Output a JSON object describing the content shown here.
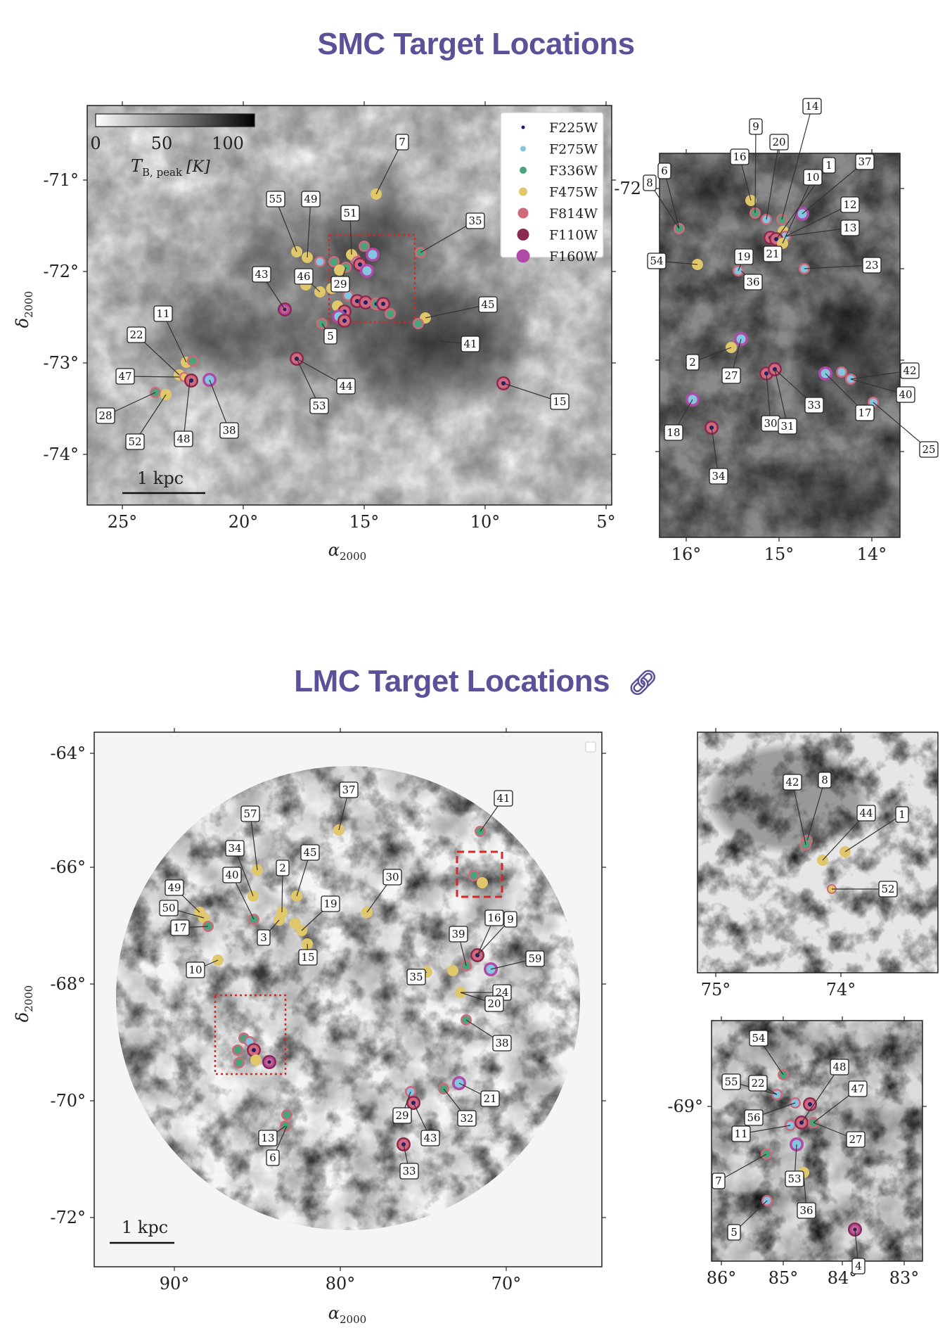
{
  "smc": {
    "heading": "SMC Target Locations",
    "colorbar": {
      "ticks": [
        "0",
        "50",
        "100"
      ],
      "label_main": "T",
      "label_sub": "B, peak",
      "label_unit": "[K]"
    },
    "scale_bar": "1 kpc",
    "xlabel_main": "α",
    "xlabel_sub": "2000",
    "ylabel_main": "δ",
    "ylabel_sub": "2000",
    "main_xticks": [
      "25°",
      "20°",
      "15°",
      "10°",
      "5°"
    ],
    "main_yticks": [
      "-71°",
      "-72°",
      "-73°",
      "-74°"
    ],
    "inset_xticks": [
      "16°",
      "15°",
      "14°"
    ],
    "inset_ytick": "-72",
    "legend": [
      {
        "name": "F225W",
        "color": "#1a1f6e"
      },
      {
        "name": "F275W",
        "color": "#86c5e0"
      },
      {
        "name": "F336W",
        "color": "#4aa37a"
      },
      {
        "name": "F475W",
        "color": "#e0c76a"
      },
      {
        "name": "F814W",
        "color": "#d06a7a"
      },
      {
        "name": "F110W",
        "color": "#8a2a50"
      },
      {
        "name": "F160W",
        "color": "#b04aa8"
      }
    ],
    "main_labels": [
      "7",
      "55",
      "49",
      "51",
      "35",
      "43",
      "46",
      "29",
      "5",
      "45",
      "41",
      "11",
      "22",
      "47",
      "44",
      "53",
      "15",
      "28",
      "52",
      "48",
      "38"
    ],
    "inset_labels": [
      "14",
      "9",
      "20",
      "16",
      "6",
      "8",
      "1",
      "37",
      "10",
      "12",
      "13",
      "54",
      "19",
      "21",
      "36",
      "23",
      "2",
      "27",
      "42",
      "40",
      "33",
      "17",
      "30",
      "31",
      "18",
      "34",
      "25"
    ]
  },
  "lmc": {
    "heading": "LMC Target Locations",
    "link_icon": "link-icon",
    "scale_bar": "1 kpc",
    "xlabel_main": "α",
    "xlabel_sub": "2000",
    "ylabel_main": "δ",
    "ylabel_sub": "2000",
    "main_xticks": [
      "90°",
      "80°",
      "70°"
    ],
    "main_yticks": [
      "-64°",
      "-66°",
      "-68°",
      "-70°",
      "-72°"
    ],
    "inset1_xticks": [
      "75°",
      "74°"
    ],
    "inset2_xticks": [
      "86°",
      "85°",
      "84°",
      "83°"
    ],
    "inset2_ytick": "-69°",
    "main_labels": [
      "37",
      "41",
      "57",
      "34",
      "45",
      "2",
      "40",
      "30",
      "49",
      "19",
      "50",
      "17",
      "3",
      "16",
      "9",
      "39",
      "10",
      "15",
      "59",
      "35",
      "24",
      "20",
      "38",
      "21",
      "32",
      "29",
      "43",
      "13",
      "6",
      "33"
    ],
    "inset1_labels": [
      "42",
      "8",
      "44",
      "1",
      "52"
    ],
    "inset2_labels": [
      "54",
      "48",
      "55",
      "22",
      "47",
      "56",
      "11",
      "27",
      "7",
      "53",
      "36",
      "5",
      "4"
    ]
  }
}
